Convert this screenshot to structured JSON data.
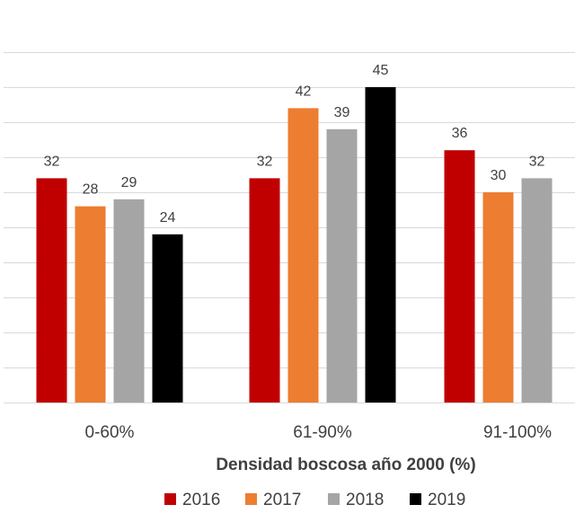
{
  "chart_data": {
    "type": "bar",
    "categories": [
      "0-60%",
      "61-90%",
      "91-100%"
    ],
    "series": [
      {
        "name": "2016",
        "values": [
          32,
          32,
          36
        ],
        "color": "#C00000"
      },
      {
        "name": "2017",
        "values": [
          28,
          42,
          30
        ],
        "color": "#ED7D31"
      },
      {
        "name": "2018",
        "values": [
          29,
          39,
          32
        ],
        "color": "#A5A5A5"
      },
      {
        "name": "2019",
        "values": [
          24,
          45,
          null
        ],
        "color": "#000000"
      }
    ],
    "xlabel": "Densidad boscosa año 2000 (%)",
    "ylabel": "",
    "ylim": [
      0,
      50
    ],
    "grid": true,
    "legend_position": "bottom",
    "data_labels": true
  }
}
